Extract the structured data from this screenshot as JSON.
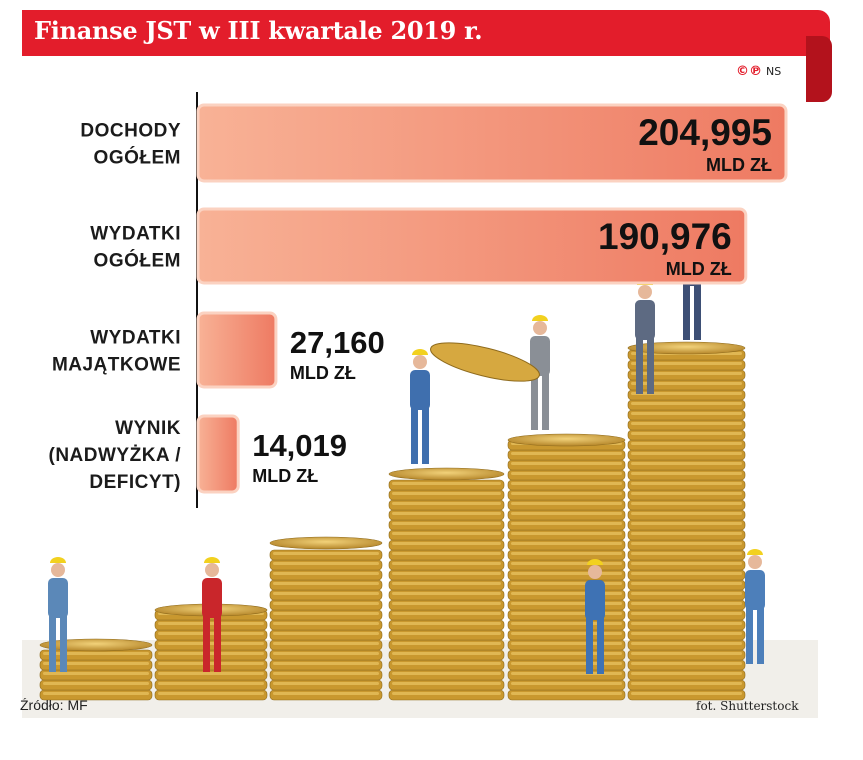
{
  "header": {
    "title": "Finanse JST w III kwartale 2019 r."
  },
  "copyright": {
    "symbols": "©℗",
    "author": "NS"
  },
  "chart_data": {
    "type": "bar",
    "orientation": "horizontal",
    "categories": [
      [
        "DOCHODY",
        "OGÓŁEM"
      ],
      [
        "WYDATKI",
        "OGÓŁEM"
      ],
      [
        "WYDATKI",
        "MAJĄTKOWE"
      ],
      [
        "WYNIK",
        "(NADWYŻKA /",
        "DEFICYT)"
      ]
    ],
    "values": [
      204.995,
      190.976,
      27.16,
      14.019
    ],
    "value_labels": [
      "204,995",
      "190,976",
      "27,160",
      "14,019"
    ],
    "unit": "MLD ZŁ",
    "xlim": [
      0,
      205
    ],
    "bar_color": "#f5a184"
  },
  "footer": {
    "source": "Źródło: MF",
    "credit": "fot. Shutterstock"
  }
}
